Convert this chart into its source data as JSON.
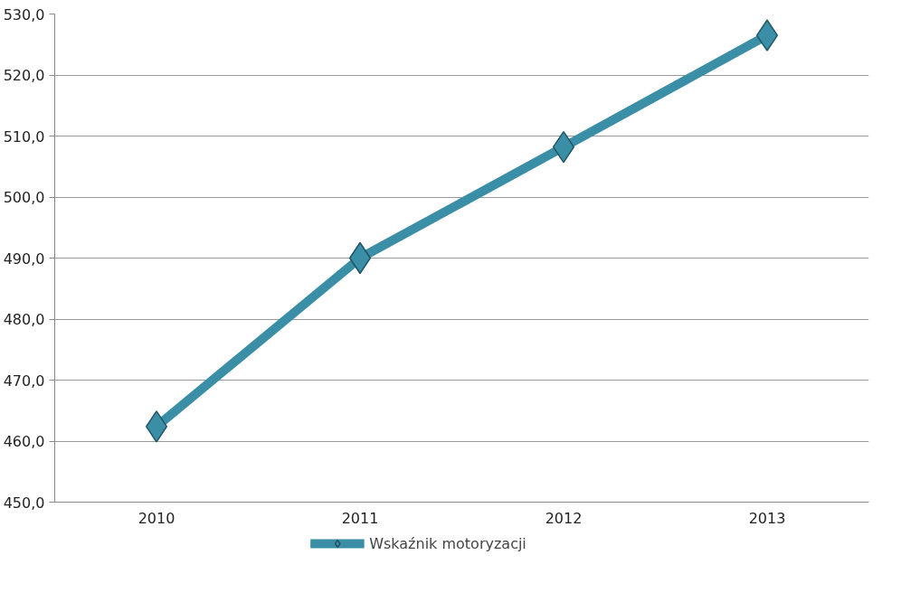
{
  "chart_data": {
    "type": "line",
    "categories": [
      "2010",
      "2011",
      "2012",
      "2013"
    ],
    "series": [
      {
        "name": "Wskaźnik motoryzacji",
        "color": "#3a8fa6",
        "values": [
          462.4,
          490.0,
          508.2,
          526.5
        ]
      }
    ],
    "ylim": [
      450,
      530
    ],
    "yticks": [
      {
        "value": 450,
        "label": "450,0"
      },
      {
        "value": 460,
        "label": "460,0"
      },
      {
        "value": 470,
        "label": "470,0"
      },
      {
        "value": 480,
        "label": "480,0"
      },
      {
        "value": 490,
        "label": "490,0"
      },
      {
        "value": 500,
        "label": "500,0"
      },
      {
        "value": 510,
        "label": "510,0"
      },
      {
        "value": 520,
        "label": "520,0"
      },
      {
        "value": 530,
        "label": "530,0"
      }
    ],
    "grid": "y",
    "legend": "bottom",
    "marker": "diamond",
    "line_style": "solid"
  }
}
